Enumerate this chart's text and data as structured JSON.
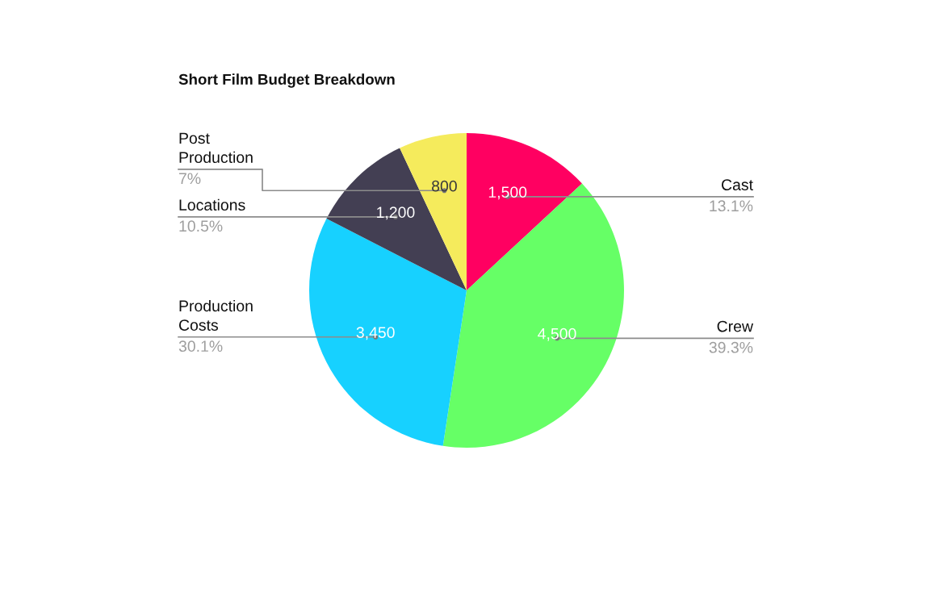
{
  "chart_data": {
    "type": "pie",
    "title": "Short Film Budget Breakdown",
    "categories": [
      "Cast",
      "Crew",
      "Production Costs",
      "Locations",
      "Post Production"
    ],
    "values": [
      1500,
      4500,
      3450,
      1200,
      800
    ],
    "colors": [
      "#ff0061",
      "#66ff66",
      "#17d1ff",
      "#433f53",
      "#f5eb5c"
    ],
    "value_labels": [
      "1,500",
      "4,500",
      "3,450",
      "1,200",
      "800"
    ],
    "annotations": [
      {
        "text": "13.1%",
        "x": "Cast"
      },
      {
        "text": "39.3%",
        "x": "Crew"
      },
      {
        "text": "30.1%",
        "x": "Production Costs"
      },
      {
        "text": "10.5%",
        "x": "Locations"
      },
      {
        "text": "7%",
        "x": "Post Production"
      }
    ]
  }
}
